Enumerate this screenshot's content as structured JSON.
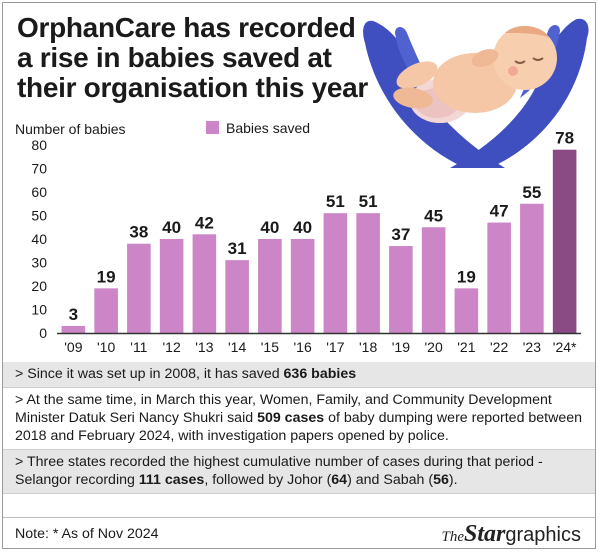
{
  "title_lines": [
    "OrphanCare has recorded",
    "a rise in babies saved at",
    "their organisation this year"
  ],
  "chart_data": {
    "type": "bar",
    "ylabel": "Number of babies",
    "ylim": [
      0,
      80
    ],
    "yticks": [
      0,
      10,
      20,
      30,
      40,
      50,
      60,
      70,
      80
    ],
    "categories": [
      "'09",
      "'10",
      "'11",
      "'12",
      "'13",
      "'14",
      "'15",
      "'16",
      "'17",
      "'18",
      "'19",
      "'20",
      "'21",
      "'22",
      "'23",
      "'24*"
    ],
    "series": [
      {
        "name": "Babies saved",
        "values": [
          3,
          19,
          38,
          40,
          42,
          31,
          40,
          40,
          51,
          51,
          37,
          45,
          19,
          47,
          55,
          78
        ]
      }
    ],
    "legend_position": "top",
    "grid": false,
    "highlight_last": true,
    "colors": {
      "bar": "#cc85c6",
      "highlight": "#8a4a84",
      "axis": "#333333"
    }
  },
  "notes": [
    [
      {
        "t": "> Since it was set up in 2008, it has saved "
      },
      {
        "t": "636 babies",
        "b": true
      }
    ],
    [
      {
        "t": "> At the same time, in March this year, Women, Family, and Community Development Minister Datuk Seri Nancy Shukri said "
      },
      {
        "t": "509 cases",
        "b": true
      },
      {
        "t": " of baby dumping were reported between 2018 and February 2024, with investigation papers opened by police."
      }
    ],
    [
      {
        "t": "> Three states recorded the highest cumulative number of cases during that period - Selangor recording "
      },
      {
        "t": "111 cases",
        "b": true
      },
      {
        "t": ", followed by Johor ("
      },
      {
        "t": "64",
        "b": true
      },
      {
        "t": ") and Sabah ("
      },
      {
        "t": "56",
        "b": true
      },
      {
        "t": ")."
      }
    ]
  ],
  "footnote": "Note: * As of Nov 2024",
  "logo": {
    "the": "The",
    "star": "Star",
    "graphics": "graphics"
  },
  "illustration_icon": "baby-in-hands-icon"
}
